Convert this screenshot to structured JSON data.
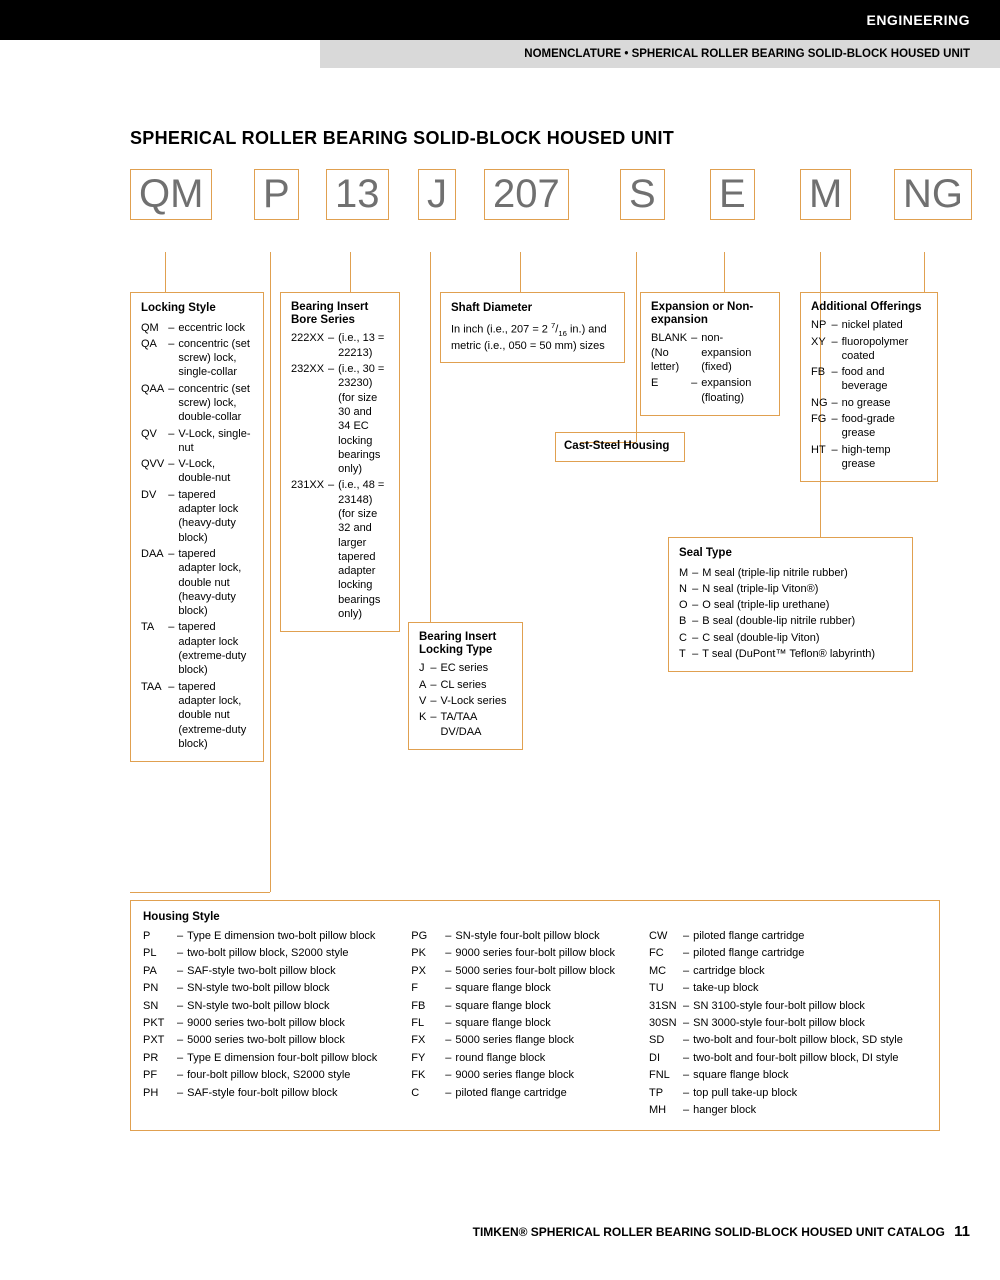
{
  "header": {
    "section": "ENGINEERING",
    "subtitle": "NOMENCLATURE • SPHERICAL ROLLER BEARING SOLID-BLOCK HOUSED UNIT"
  },
  "title": "SPHERICAL ROLLER BEARING SOLID-BLOCK HOUSED UNIT",
  "code_parts": [
    "QM",
    "P",
    "13",
    "J",
    "207",
    "S",
    "E",
    "M",
    "NG"
  ],
  "locking_style": {
    "title": "Locking Style",
    "items": [
      {
        "c": "QM",
        "d": "eccentric lock"
      },
      {
        "c": "QA",
        "d": "concentric (set screw) lock, single-collar"
      },
      {
        "c": "QAA",
        "d": "concentric (set screw) lock, double-collar"
      },
      {
        "c": "QV",
        "d": "V-Lock, single-nut"
      },
      {
        "c": "QVV",
        "d": "V-Lock, double-nut"
      },
      {
        "c": "DV",
        "d": "tapered adapter lock (heavy-duty block)"
      },
      {
        "c": "DAA",
        "d": "tapered adapter lock, double nut (heavy-duty block)"
      },
      {
        "c": "TA",
        "d": "tapered adapter lock (extreme-duty block)"
      },
      {
        "c": "TAA",
        "d": "tapered adapter lock, double nut (extreme-duty block)"
      }
    ]
  },
  "bore_series": {
    "title": "Bearing Insert Bore Series",
    "items": [
      {
        "c": "222XX",
        "d": "(i.e., 13 = 22213)"
      },
      {
        "c": "232XX",
        "d": "(i.e., 30 = 23230) (for size 30 and 34 EC locking bearings only)"
      },
      {
        "c": "231XX",
        "d": "(i.e., 48 = 23148) (for size 32 and larger tapered adapter locking bearings only)"
      }
    ]
  },
  "locking_type": {
    "title": "Bearing Insert Locking Type",
    "items": [
      {
        "c": "J",
        "d": "EC series"
      },
      {
        "c": "A",
        "d": "CL series"
      },
      {
        "c": "V",
        "d": "V-Lock series"
      },
      {
        "c": "K",
        "d": "TA/TAA DV/DAA"
      }
    ]
  },
  "shaft_diameter": {
    "title": "Shaft Diameter",
    "text": "In inch (i.e., 207 = 2 7/16 in.) and metric (i.e., 050 = 50 mm) sizes"
  },
  "cast_steel": {
    "title": "Cast-Steel Housing"
  },
  "expansion": {
    "title": "Expansion or Non-expansion",
    "items": [
      {
        "c": "BLANK (No letter)",
        "d": "non-expansion (fixed)"
      },
      {
        "c": "E",
        "d": "expansion (floating)"
      }
    ]
  },
  "seal_type": {
    "title": "Seal Type",
    "items": [
      {
        "c": "M",
        "d": "M seal (triple-lip nitrile rubber)"
      },
      {
        "c": "N",
        "d": "N seal (triple-lip Viton®)"
      },
      {
        "c": "O",
        "d": "O seal (triple-lip urethane)"
      },
      {
        "c": "B",
        "d": "B seal (double-lip nitrile rubber)"
      },
      {
        "c": "C",
        "d": "C seal (double-lip Viton)"
      },
      {
        "c": "T",
        "d": "T seal (DuPont™ Teflon® labyrinth)"
      }
    ]
  },
  "additional": {
    "title": "Additional Offerings",
    "items": [
      {
        "c": "NP",
        "d": "nickel plated"
      },
      {
        "c": "XY",
        "d": "fluoropolymer coated"
      },
      {
        "c": "FB",
        "d": "food and beverage"
      },
      {
        "c": "NG",
        "d": "no grease"
      },
      {
        "c": "FG",
        "d": "food-grade grease"
      },
      {
        "c": "HT",
        "d": "high-temp grease"
      }
    ]
  },
  "housing": {
    "title": "Housing Style",
    "col1": [
      {
        "c": "P",
        "d": "Type E dimension two-bolt pillow block"
      },
      {
        "c": "PL",
        "d": "two-bolt pillow block, S2000 style"
      },
      {
        "c": "PA",
        "d": "SAF-style two-bolt pillow block"
      },
      {
        "c": "PN",
        "d": "SN-style two-bolt pillow block"
      },
      {
        "c": "SN",
        "d": "SN-style two-bolt pillow block"
      },
      {
        "c": "PKT",
        "d": "9000 series two-bolt pillow block"
      },
      {
        "c": "PXT",
        "d": "5000 series two-bolt pillow block"
      },
      {
        "c": "PR",
        "d": "Type E dimension four-bolt pillow block"
      },
      {
        "c": "PF",
        "d": "four-bolt pillow block, S2000 style"
      },
      {
        "c": "PH",
        "d": "SAF-style four-bolt pillow block"
      }
    ],
    "col2": [
      {
        "c": "PG",
        "d": "SN-style four-bolt pillow block"
      },
      {
        "c": "PK",
        "d": "9000 series four-bolt pillow block"
      },
      {
        "c": "PX",
        "d": "5000 series four-bolt pillow block"
      },
      {
        "c": "F",
        "d": "square flange block"
      },
      {
        "c": "FB",
        "d": "square flange block"
      },
      {
        "c": "FL",
        "d": "square flange block"
      },
      {
        "c": "FX",
        "d": "5000 series flange block"
      },
      {
        "c": "FY",
        "d": "round flange block"
      },
      {
        "c": "FK",
        "d": "9000 series flange block"
      },
      {
        "c": "C",
        "d": "piloted flange cartridge"
      }
    ],
    "col3": [
      {
        "c": "CW",
        "d": "piloted flange cartridge"
      },
      {
        "c": "FC",
        "d": "piloted flange cartridge"
      },
      {
        "c": "MC",
        "d": "cartridge block"
      },
      {
        "c": "TU",
        "d": "take-up block"
      },
      {
        "c": "31SN",
        "d": "SN 3100-style four-bolt pillow block"
      },
      {
        "c": "30SN",
        "d": "SN 3000-style four-bolt pillow block"
      },
      {
        "c": "SD",
        "d": "two-bolt and four-bolt pillow block, SD style"
      },
      {
        "c": "DI",
        "d": "two-bolt and four-bolt pillow block, DI style"
      },
      {
        "c": "FNL",
        "d": "square flange block"
      },
      {
        "c": "TP",
        "d": "top pull take-up block"
      },
      {
        "c": "MH",
        "d": "hanger block"
      }
    ]
  },
  "footer": {
    "text": "TIMKEN® SPHERICAL ROLLER BEARING SOLID-BLOCK HOUSED UNIT CATALOG",
    "page": "11"
  },
  "colors": {
    "accent": "#e0a050",
    "code_text": "#707070",
    "black": "#000000",
    "gray": "#d9d9d9"
  }
}
